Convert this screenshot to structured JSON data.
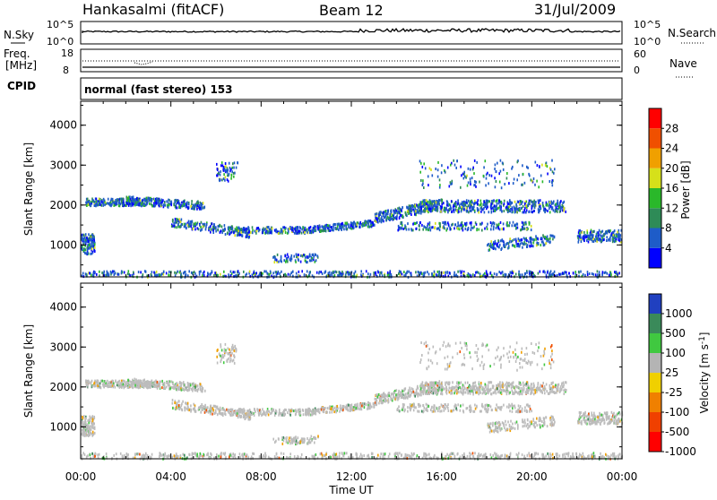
{
  "header": {
    "station": "Hankasalmi (fitACF)",
    "beam": "Beam 12",
    "date": "31/Jul/2009"
  },
  "panels": {
    "nsky": {
      "label": "N.Sky",
      "ticks_left": [
        "10^5",
        "10^0"
      ],
      "ticks_right": [
        "10^5",
        "10^0"
      ],
      "right_label": "N.Search"
    },
    "freq": {
      "label_line1": "Freq.",
      "label_line2": "[MHz]",
      "ticks_left": [
        "18",
        "8"
      ],
      "ticks_right": [
        "60",
        "0"
      ],
      "right_label": "Nave"
    },
    "cpid": {
      "label": "CPID",
      "text": "normal (fast stereo) 153"
    }
  },
  "chart_data": [
    {
      "type": "heatmap",
      "name": "power",
      "ylabel": "Slant Range [km]",
      "yticks": [
        "1000",
        "2000",
        "3000",
        "4000"
      ],
      "ylim": [
        200,
        4600
      ],
      "colorbar": {
        "label": "Power [dB]",
        "ticks": [
          "4",
          "8",
          "12",
          "16",
          "20",
          "24",
          "28"
        ],
        "colors": [
          "#0000ff",
          "#1e5cc8",
          "#2e8b57",
          "#2ab82a",
          "#d6e01a",
          "#f0a000",
          "#f05000",
          "#ff0000"
        ]
      }
    },
    {
      "type": "heatmap",
      "name": "velocity",
      "ylabel": "Slant Range [km]",
      "yticks": [
        "1000",
        "2000",
        "3000",
        "4000"
      ],
      "ylim": [
        200,
        4600
      ],
      "colorbar": {
        "label": "Velocity [m s",
        "label_sup": "-1",
        "label_end": "]",
        "ticks": [
          "1000",
          "500",
          "100",
          "25",
          "-25",
          "-100",
          "-500",
          "-1000"
        ],
        "colors": [
          "#2040c0",
          "#3a8a5a",
          "#40c840",
          "#b4b4b4",
          "#f0d000",
          "#f08000",
          "#f04000",
          "#ff0000"
        ]
      }
    }
  ],
  "time_axis": {
    "ticks": [
      "00:00",
      "04:00",
      "08:00",
      "12:00",
      "16:00",
      "20:00",
      "00:00"
    ],
    "label": "Time UT"
  }
}
